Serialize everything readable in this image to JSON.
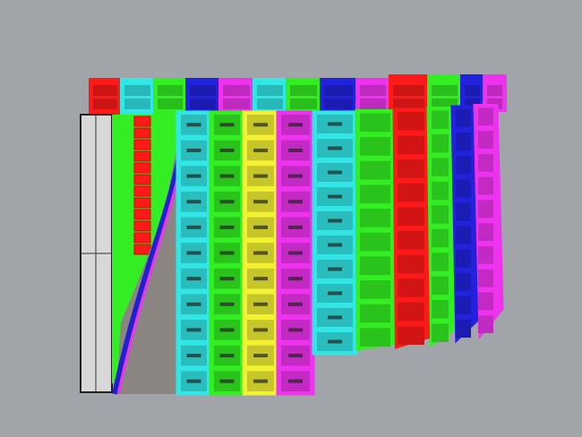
{
  "viewport": {
    "background": "#a1a5a9"
  },
  "palette": {
    "red": "#ff1a1a",
    "cyan": "#33e6e6",
    "green": "#33ee22",
    "blue": "#2222dd",
    "magenta": "#ee33ee",
    "yellow": "#f2f233",
    "grey": "#8a8580",
    "frame": "#d8d8d8"
  },
  "back_row_colors": [
    "red",
    "cyan",
    "green",
    "blue",
    "magenta",
    "cyan",
    "green",
    "blue",
    "magenta",
    "red",
    "green",
    "blue",
    "magenta"
  ],
  "front_columns": [
    {
      "color": "cyan",
      "rows": 11
    },
    {
      "color": "green",
      "rows": 11
    },
    {
      "color": "yellow",
      "rows": 11
    },
    {
      "color": "magenta",
      "rows": 11
    },
    {
      "color": "cyan",
      "rows": 10
    },
    {
      "color": "green",
      "rows": 10
    },
    {
      "color": "red",
      "rows": 10
    },
    {
      "color": "green",
      "rows": 10
    },
    {
      "color": "blue",
      "rows": 10
    },
    {
      "color": "magenta",
      "rows": 10
    }
  ]
}
